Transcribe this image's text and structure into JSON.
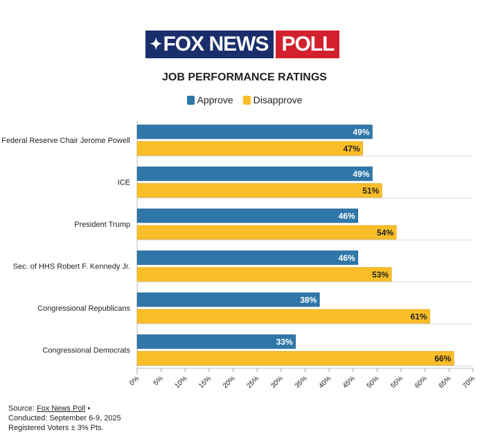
{
  "logo": {
    "left_text": "FOX NEWS",
    "right_text": "POLL"
  },
  "colors": {
    "approve": "#2f77a9",
    "disapprove": "#fbbe28",
    "text": "#222222",
    "grid": "#d9d9d9"
  },
  "chart_data": {
    "type": "bar",
    "orientation": "horizontal",
    "title": "JOB PERFORMANCE RATINGS",
    "categories": [
      "Federal Reserve Chair Jerome Powell",
      "ICE",
      "President Trump",
      "Sec. of HHS Robert F. Kennedy Jr.",
      "Congressional Republicans",
      "Congressional Democrats"
    ],
    "series": [
      {
        "name": "Approve",
        "values": [
          49,
          49,
          46,
          46,
          38,
          33
        ],
        "labels": [
          "49%",
          "49%",
          "46%",
          "46%",
          "38%",
          "33%"
        ]
      },
      {
        "name": "Disapprove",
        "values": [
          47,
          51,
          54,
          53,
          61,
          66
        ],
        "labels": [
          "47%",
          "51%",
          "54%",
          "53%",
          "61%",
          "66%"
        ]
      }
    ],
    "xlim": [
      0,
      70
    ],
    "xticks": [
      "0%",
      "5%",
      "10%",
      "15%",
      "20%",
      "25%",
      "30%",
      "35%",
      "40%",
      "45%",
      "50%",
      "55%",
      "60%",
      "65%",
      "70%"
    ],
    "legend_position": "top"
  },
  "source": {
    "prefix": "Source: ",
    "link": "Fox News Poll",
    "suffix": " •",
    "conducted": "Conducted: September 6-9, 2025",
    "sample": "Registered Voters ± 3% Pts."
  }
}
